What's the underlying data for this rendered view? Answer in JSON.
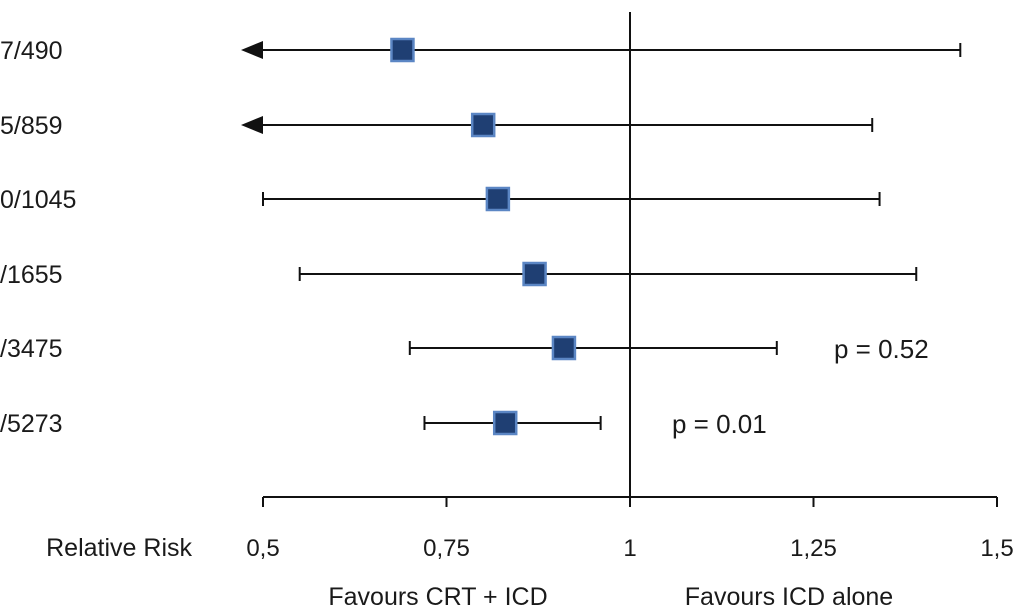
{
  "chart_data": {
    "type": "forest",
    "axis_title": "Relative Risk",
    "xlim": [
      0.5,
      1.5
    ],
    "reference_line": 1,
    "ticks": [
      0.5,
      0.75,
      1,
      1.25,
      1.5
    ],
    "tick_labels": [
      "0,5",
      "0,75",
      "1",
      "1,25",
      "1,5"
    ],
    "favours_left": "Favours CRT + ICD",
    "favours_right": "Favours ICD alone",
    "rows": [
      {
        "label": "7/490",
        "rr": 0.69,
        "lo": 0.5,
        "hi": 1.45,
        "lo_clipped": true
      },
      {
        "label": "5/859",
        "rr": 0.8,
        "lo": 0.5,
        "hi": 1.33,
        "lo_clipped": true
      },
      {
        "label": "0/1045",
        "rr": 0.82,
        "lo": 0.5,
        "hi": 1.34,
        "lo_clipped": false
      },
      {
        "label": "/1655",
        "rr": 0.87,
        "lo": 0.55,
        "hi": 1.39,
        "lo_clipped": false
      },
      {
        "label": "/3475",
        "rr": 0.91,
        "lo": 0.7,
        "hi": 1.2,
        "lo_clipped": false
      },
      {
        "label": "/5273",
        "rr": 0.83,
        "lo": 0.72,
        "hi": 0.96,
        "lo_clipped": false
      }
    ],
    "annotations": [
      {
        "text": "p = 0.52",
        "row": 4
      },
      {
        "text": "p = 0.01",
        "row": 5
      }
    ],
    "colors": {
      "marker_fill": "#1f3f73",
      "marker_stroke": "#5b86c4",
      "line": "#111111"
    }
  }
}
